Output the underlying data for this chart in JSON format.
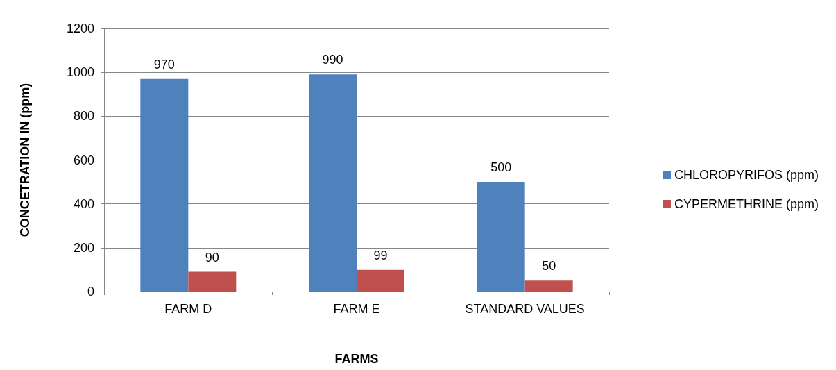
{
  "chart_data": {
    "type": "bar",
    "xlabel": "FARMS",
    "ylabel": "CONCETRATION IN (ppm)",
    "categories": [
      "FARM D",
      "FARM E",
      "STANDARD VALUES"
    ],
    "series": [
      {
        "name": "CHLOROPYRIFOS (ppm)",
        "color": "#4f81bd",
        "values": [
          970,
          990,
          500
        ]
      },
      {
        "name": "CYPERMETHRINE (ppm)",
        "color": "#c0504d",
        "values": [
          90,
          99,
          50
        ]
      }
    ],
    "ylim": [
      0,
      1200
    ],
    "yticks": [
      0,
      200,
      400,
      600,
      800,
      1000,
      1200
    ],
    "grid": "y",
    "legend": "right",
    "data_labels": true
  }
}
